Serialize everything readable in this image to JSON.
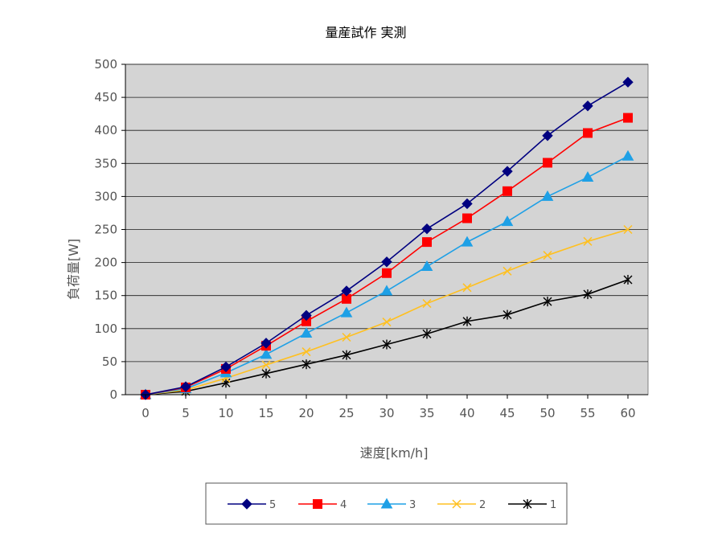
{
  "chart_data": {
    "type": "line",
    "title": "量産試作 実測",
    "xlabel": "速度[km/h]",
    "ylabel": "負荷量[W]",
    "categories": [
      "0",
      "5",
      "10",
      "15",
      "20",
      "25",
      "30",
      "35",
      "40",
      "45",
      "50",
      "55",
      "60"
    ],
    "x": [
      0,
      5,
      10,
      15,
      20,
      25,
      30,
      35,
      40,
      45,
      50,
      55,
      60
    ],
    "ylim": [
      0,
      500
    ],
    "yticks": [
      0,
      50,
      100,
      150,
      200,
      250,
      300,
      350,
      400,
      450,
      500
    ],
    "grid": true,
    "legend_position": "bottom",
    "series": [
      {
        "name": "5",
        "color": "#000080",
        "marker": "diamond",
        "values": [
          0,
          12,
          42,
          78,
          120,
          157,
          201,
          251,
          289,
          338,
          392,
          437,
          473
        ]
      },
      {
        "name": "4",
        "color": "#ff0000",
        "marker": "square",
        "values": [
          0,
          11,
          39,
          74,
          111,
          145,
          184,
          231,
          267,
          308,
          351,
          396,
          419
        ]
      },
      {
        "name": "3",
        "color": "#1ea0e6",
        "marker": "triangle",
        "values": [
          0,
          9,
          33,
          61,
          93,
          124,
          157,
          194,
          231,
          262,
          300,
          329,
          361
        ]
      },
      {
        "name": "2",
        "color": "#ffc020",
        "marker": "x",
        "values": [
          0,
          7,
          25,
          45,
          65,
          87,
          110,
          138,
          162,
          187,
          211,
          232,
          250
        ]
      },
      {
        "name": "1",
        "color": "#000000",
        "marker": "star",
        "values": [
          0,
          5,
          18,
          32,
          46,
          60,
          76,
          92,
          111,
          121,
          141,
          152,
          174
        ]
      }
    ]
  }
}
